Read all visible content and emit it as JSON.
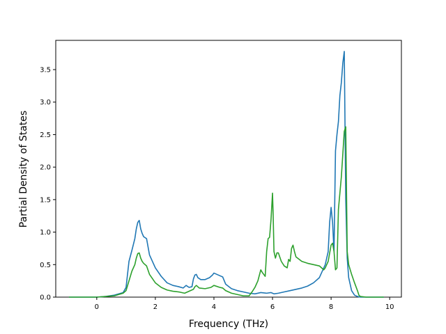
{
  "chart_data": {
    "type": "line",
    "title": "",
    "xlabel": "Frequency (THz)",
    "ylabel": "Partial Density of States",
    "xlim": [
      -1.4,
      10.4
    ],
    "ylim": [
      0,
      3.95
    ],
    "xticks": [
      0,
      2,
      4,
      6,
      8,
      10
    ],
    "yticks": [
      0.0,
      0.5,
      1.0,
      1.5,
      2.0,
      2.5,
      3.0,
      3.5
    ],
    "xtick_labels": [
      "0",
      "2",
      "4",
      "6",
      "8",
      "10"
    ],
    "ytick_labels": [
      "0.0",
      "0.5",
      "1.0",
      "1.5",
      "2.0",
      "2.5",
      "3.0",
      "3.5"
    ],
    "grid": false,
    "legend": "none",
    "series": [
      {
        "color": "#1f77b4",
        "x": [
          -0.95,
          0.0,
          0.3,
          0.6,
          0.9,
          1.0,
          1.1,
          1.2,
          1.3,
          1.35,
          1.4,
          1.45,
          1.5,
          1.55,
          1.6,
          1.7,
          1.8,
          2.0,
          2.2,
          2.4,
          2.6,
          2.8,
          2.95,
          3.05,
          3.15,
          3.25,
          3.3,
          3.35,
          3.4,
          3.45,
          3.55,
          3.7,
          3.85,
          3.95,
          4.0,
          4.1,
          4.2,
          4.3,
          4.4,
          4.6,
          4.8,
          5.0,
          5.2,
          5.4,
          5.6,
          5.8,
          5.95,
          6.0,
          6.05,
          6.2,
          6.4,
          6.6,
          6.8,
          7.0,
          7.2,
          7.4,
          7.6,
          7.8,
          7.9,
          7.95,
          8.0,
          8.05,
          8.1,
          8.15,
          8.2,
          8.25,
          8.3,
          8.35,
          8.4,
          8.45,
          8.5,
          8.55,
          8.6,
          8.65,
          8.7,
          8.8,
          8.9,
          9.0,
          9.2,
          9.8
        ],
        "y": [
          0.0,
          0.0,
          0.01,
          0.03,
          0.07,
          0.15,
          0.55,
          0.72,
          0.9,
          1.05,
          1.15,
          1.18,
          1.05,
          0.98,
          0.93,
          0.9,
          0.65,
          0.45,
          0.32,
          0.22,
          0.18,
          0.16,
          0.14,
          0.18,
          0.15,
          0.16,
          0.28,
          0.34,
          0.35,
          0.3,
          0.27,
          0.27,
          0.3,
          0.34,
          0.37,
          0.35,
          0.33,
          0.31,
          0.2,
          0.13,
          0.1,
          0.08,
          0.06,
          0.05,
          0.07,
          0.06,
          0.07,
          0.06,
          0.05,
          0.06,
          0.08,
          0.1,
          0.12,
          0.14,
          0.17,
          0.22,
          0.3,
          0.5,
          0.7,
          1.15,
          1.38,
          1.15,
          0.7,
          2.25,
          2.5,
          2.7,
          3.1,
          3.3,
          3.6,
          3.78,
          1.5,
          0.6,
          0.3,
          0.2,
          0.1,
          0.03,
          0.01,
          0.0,
          0.0,
          0.0
        ]
      },
      {
        "color": "#2ca02c",
        "x": [
          -0.95,
          0.0,
          0.3,
          0.6,
          0.9,
          1.0,
          1.1,
          1.2,
          1.3,
          1.35,
          1.4,
          1.45,
          1.5,
          1.55,
          1.6,
          1.7,
          1.8,
          2.0,
          2.2,
          2.4,
          2.6,
          2.8,
          3.0,
          3.1,
          3.2,
          3.3,
          3.35,
          3.4,
          3.5,
          3.7,
          3.9,
          4.0,
          4.2,
          4.3,
          4.4,
          4.6,
          4.8,
          5.0,
          5.2,
          5.3,
          5.4,
          5.5,
          5.6,
          5.65,
          5.7,
          5.75,
          5.8,
          5.85,
          5.9,
          5.95,
          6.0,
          6.02,
          6.05,
          6.1,
          6.15,
          6.2,
          6.3,
          6.4,
          6.5,
          6.55,
          6.6,
          6.65,
          6.7,
          6.75,
          6.8,
          7.0,
          7.2,
          7.4,
          7.6,
          7.75,
          7.8,
          7.9,
          8.0,
          8.05,
          8.1,
          8.15,
          8.2,
          8.25,
          8.3,
          8.35,
          8.4,
          8.45,
          8.5,
          8.55,
          8.6,
          8.7,
          8.8,
          8.9,
          8.95,
          9.0,
          9.2,
          9.8
        ],
        "y": [
          0.0,
          0.0,
          0.01,
          0.02,
          0.06,
          0.1,
          0.25,
          0.4,
          0.5,
          0.6,
          0.67,
          0.68,
          0.6,
          0.55,
          0.52,
          0.48,
          0.35,
          0.22,
          0.15,
          0.11,
          0.09,
          0.08,
          0.06,
          0.08,
          0.1,
          0.12,
          0.16,
          0.18,
          0.14,
          0.13,
          0.15,
          0.18,
          0.15,
          0.14,
          0.1,
          0.06,
          0.04,
          0.02,
          0.02,
          0.08,
          0.15,
          0.25,
          0.42,
          0.38,
          0.35,
          0.32,
          0.7,
          0.9,
          0.92,
          1.2,
          1.6,
          1.3,
          0.7,
          0.6,
          0.68,
          0.68,
          0.55,
          0.48,
          0.45,
          0.58,
          0.55,
          0.75,
          0.8,
          0.7,
          0.62,
          0.55,
          0.52,
          0.5,
          0.48,
          0.42,
          0.45,
          0.55,
          0.8,
          0.83,
          0.7,
          0.42,
          0.45,
          1.35,
          1.6,
          1.85,
          2.2,
          2.55,
          2.62,
          0.7,
          0.5,
          0.35,
          0.22,
          0.1,
          0.03,
          0.01,
          0.0,
          0.0
        ]
      }
    ]
  }
}
